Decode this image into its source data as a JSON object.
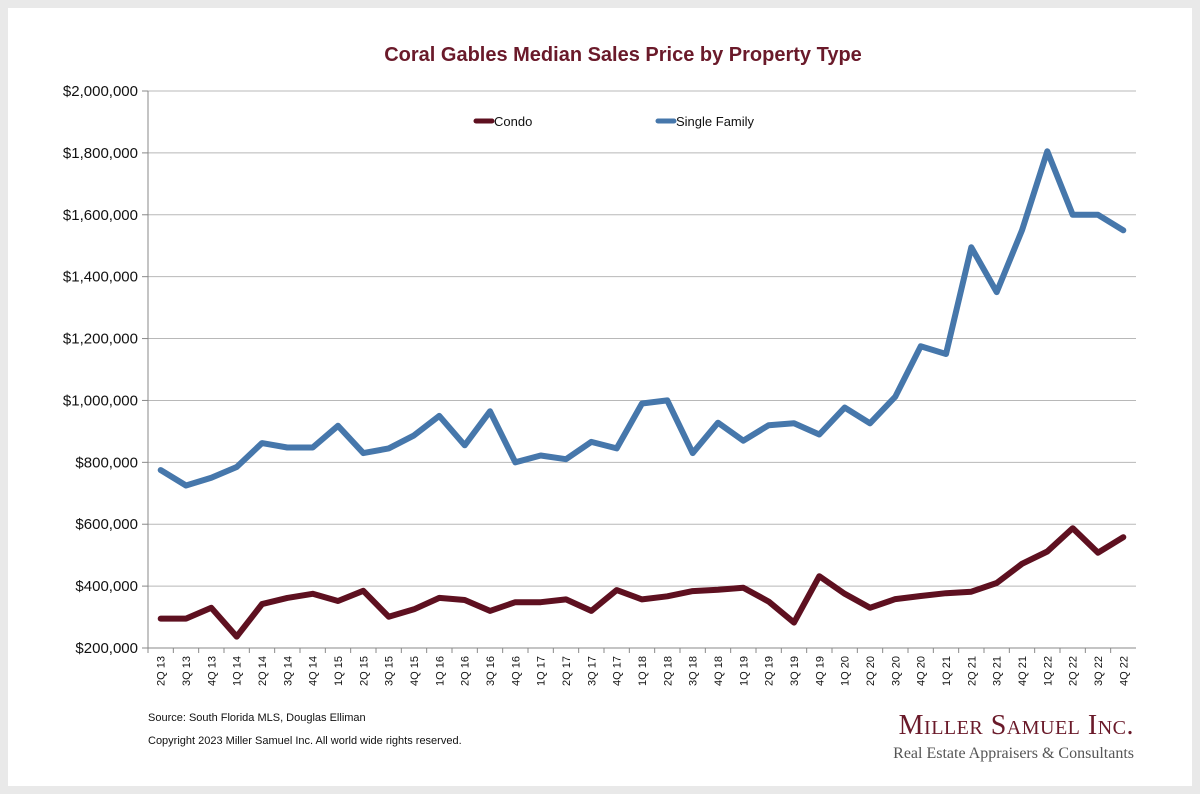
{
  "chart_data": {
    "type": "line",
    "title": "Coral Gables Median Sales Price by Property Type",
    "xlabel": "",
    "ylabel": "",
    "ylim": [
      200000,
      2000000
    ],
    "y_ticks": [
      "$200,000",
      "$400,000",
      "$600,000",
      "$800,000",
      "$1,000,000",
      "$1,200,000",
      "$1,400,000",
      "$1,600,000",
      "$1,800,000",
      "$2,000,000"
    ],
    "grid": true,
    "legend_position": "top",
    "categories": [
      "2Q 13",
      "3Q 13",
      "4Q 13",
      "1Q 14",
      "2Q 14",
      "3Q 14",
      "4Q 14",
      "1Q 15",
      "2Q 15",
      "3Q 15",
      "4Q 15",
      "1Q 16",
      "2Q 16",
      "3Q 16",
      "4Q 16",
      "1Q 17",
      "2Q 17",
      "3Q 17",
      "4Q 17",
      "1Q 18",
      "2Q 18",
      "3Q 18",
      "4Q 18",
      "1Q 19",
      "2Q 19",
      "3Q 19",
      "4Q 19",
      "1Q 20",
      "2Q 20",
      "3Q 20",
      "4Q 20",
      "1Q 21",
      "2Q 21",
      "3Q 21",
      "4Q 21",
      "1Q 22",
      "2Q 22",
      "3Q 22",
      "4Q 22"
    ],
    "series": [
      {
        "name": "Condo",
        "color": "#5e1020",
        "values": [
          295000,
          295000,
          330000,
          237000,
          342000,
          362000,
          375000,
          352000,
          385000,
          301000,
          325000,
          362000,
          355000,
          320000,
          348000,
          348000,
          357000,
          320000,
          387000,
          357000,
          367000,
          384000,
          388000,
          395000,
          350000,
          282000,
          432000,
          375000,
          330000,
          358000,
          368000,
          377000,
          382000,
          410000,
          472000,
          512000,
          587000,
          508000,
          558000
        ]
      },
      {
        "name": "Single Family",
        "color": "#4677ab",
        "values": [
          775000,
          725000,
          750000,
          785000,
          862000,
          848000,
          848000,
          918000,
          830000,
          845000,
          887000,
          950000,
          855000,
          965000,
          800000,
          822000,
          810000,
          866000,
          845000,
          990000,
          1000000,
          830000,
          928000,
          870000,
          920000,
          926000,
          890000,
          977000,
          926000,
          1012000,
          1175000,
          1150000,
          1495000,
          1350000,
          1550000,
          1805000,
          1600000,
          1600000,
          1550000
        ]
      }
    ]
  },
  "footnotes": {
    "source": "Source: South Florida MLS, Douglas Elliman",
    "copyright": "Copyright 2023 Miller Samuel Inc.  All world wide rights reserved."
  },
  "brand": {
    "name": "Miller Samuel Inc.",
    "tagline": "Real Estate Appraisers & Consultants"
  }
}
